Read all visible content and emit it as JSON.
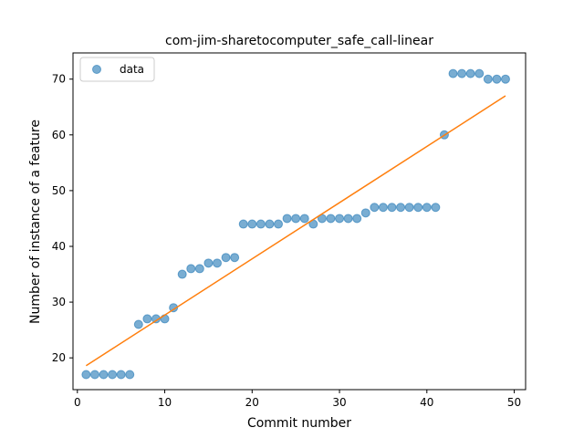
{
  "chart_data": {
    "type": "scatter",
    "title": "com-jim-sharetocomputer_safe_call-linear",
    "xlabel": "Commit number",
    "ylabel": "Number of instance of a feature",
    "xlim": [
      -0.5,
      51.3
    ],
    "ylim": [
      14.3,
      74.7
    ],
    "xticks": [
      0,
      10,
      20,
      30,
      40,
      50
    ],
    "yticks": [
      20,
      30,
      40,
      50,
      60,
      70
    ],
    "legend": {
      "placement": "top-left",
      "entries": [
        "data"
      ]
    },
    "series": [
      {
        "name": "data",
        "kind": "scatter",
        "color": "#1f77b4",
        "x": [
          1,
          2,
          3,
          4,
          5,
          6,
          7,
          8,
          9,
          10,
          11,
          12,
          13,
          14,
          15,
          16,
          17,
          18,
          19,
          20,
          21,
          22,
          23,
          24,
          25,
          26,
          27,
          28,
          29,
          30,
          31,
          32,
          33,
          34,
          35,
          36,
          37,
          38,
          39,
          40,
          41,
          42,
          43,
          44,
          45,
          46,
          47,
          48,
          49
        ],
        "y": [
          17,
          17,
          17,
          17,
          17,
          17,
          26,
          27,
          27,
          27,
          29,
          35,
          36,
          36,
          37,
          37,
          38,
          38,
          44,
          44,
          44,
          44,
          44,
          45,
          45,
          45,
          44,
          45,
          45,
          45,
          45,
          45,
          46,
          47,
          47,
          47,
          47,
          47,
          47,
          47,
          47,
          60,
          71,
          71,
          71,
          71,
          70,
          70,
          70
        ]
      },
      {
        "kind": "line",
        "color": "#ff7f0e",
        "x": [
          1,
          49
        ],
        "y": [
          18.6,
          67.0
        ]
      }
    ]
  }
}
